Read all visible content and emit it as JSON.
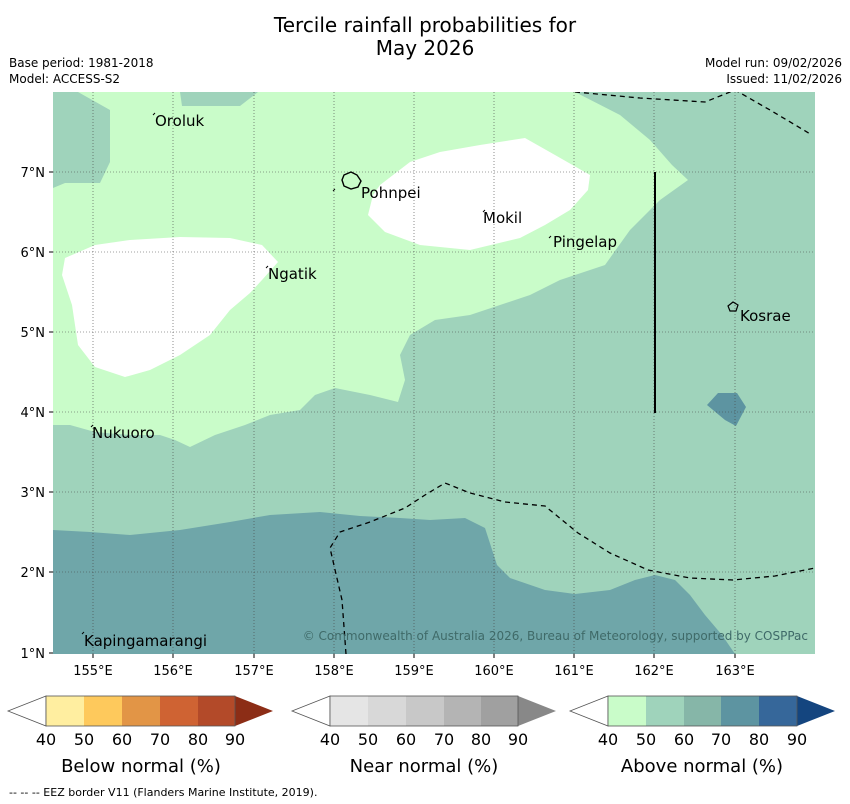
{
  "header": {
    "title_line1": "Tercile rainfall probabilities for",
    "title_line2": "May 2026",
    "base_period": "Base period: 1981-2018",
    "model": "Model: ACCESS-S2",
    "model_run": "Model run: 09/02/2026",
    "issued": "Issued: 11/02/2026"
  },
  "map": {
    "lat_labels": [
      "7°N",
      "6°N",
      "5°N",
      "4°N",
      "3°N",
      "2°N",
      "1°N"
    ],
    "lon_labels": [
      "155°E",
      "156°E",
      "157°E",
      "158°E",
      "159°E",
      "160°E",
      "161°E",
      "162°E",
      "163°E"
    ],
    "places": [
      "Oroluk",
      "Pohnpei",
      "Mokil",
      "Pingelap",
      "Ngatik",
      "Kosrae",
      "Nukuoro",
      "Kapingamarangi"
    ],
    "copyright": "© Commonwealth of Australia 2026, Bureau of Meteorology, supported by COSPPac"
  },
  "colors": {
    "below": [
      "#ffffff",
      "#ffeea0",
      "#fec95c",
      "#e29546",
      "#cf6333",
      "#b34a29",
      "#8c2d16"
    ],
    "near": [
      "#ffffff",
      "#e5e5e5",
      "#d8d8d8",
      "#c8c8c8",
      "#b4b4b4",
      "#a0a0a0",
      "#888888"
    ],
    "above": [
      "#ffffff",
      "#c9fcc9",
      "#9fd3bb",
      "#86b6a8",
      "#5d94a1",
      "#36679a",
      "#14457f"
    ],
    "map_white": "#ffffff",
    "map_light": "#c9fcc9",
    "map_mid": "#9fd3bb",
    "map_dark": "#6fa6a9",
    "map_darker": "#5d94a1"
  },
  "legends": [
    {
      "label": "Below normal (%)",
      "ticks": [
        "40",
        "50",
        "60",
        "70",
        "80",
        "90"
      ]
    },
    {
      "label": "Near normal (%)",
      "ticks": [
        "40",
        "50",
        "60",
        "70",
        "80",
        "90"
      ]
    },
    {
      "label": "Above normal (%)",
      "ticks": [
        "40",
        "50",
        "60",
        "70",
        "80",
        "90"
      ]
    }
  ],
  "footnote": "-- -- -- EEZ border V11 (Flanders Marine Institute, 2019)."
}
